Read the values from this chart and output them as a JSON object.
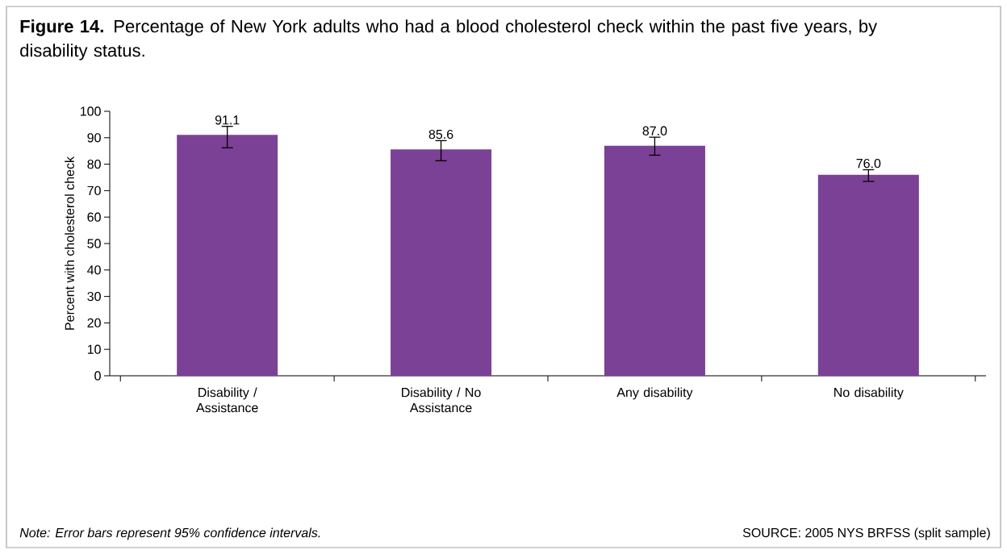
{
  "chart_data": {
    "type": "bar",
    "title": "**Figure 14.** Percentage of New York adults who had a blood cholesterol check within the past five years, by disability status.",
    "ylabel": "Percent with cholesterol check",
    "categories": [
      "Disability / Assistance",
      "Disability / No Assistance",
      "Any disability",
      "No disability"
    ],
    "values": [
      91.1,
      85.6,
      87.0,
      76.0
    ],
    "value_labels": [
      "91.1",
      "85.6",
      "87.0",
      "76.0"
    ],
    "errors": [
      [
        86.2,
        94.3
      ],
      [
        81.3,
        88.9
      ],
      [
        83.4,
        90.2
      ],
      [
        73.5,
        77.9
      ]
    ],
    "color": "#7b4196",
    "ylim": [
      0,
      100
    ],
    "yticks": [
      0,
      10,
      20,
      30,
      40,
      50,
      60,
      70,
      80,
      90,
      100
    ],
    "grid": false,
    "annotations": [
      "Note: Error bars represent 95% confidence intervals.",
      "SOURCE: 2005 NYS BRFSS (split sample)"
    ]
  }
}
